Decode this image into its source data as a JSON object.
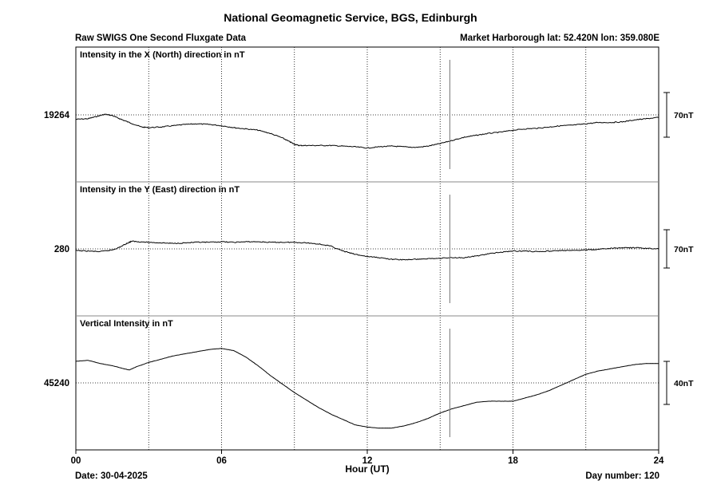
{
  "header": {
    "title": "National Geomagnetic Service, BGS, Edinburgh",
    "subtitle_left": "Raw SWIGS One Second Fluxgate Data",
    "subtitle_right": "Market Harborough  lat: 52.420N lon: 359.080E"
  },
  "footer": {
    "date": "Date: 30-04-2025",
    "day_number": "Day number:  120"
  },
  "chart_data": {
    "type": "line",
    "xlabel": "Hour (UT)",
    "xlim": [
      0,
      24
    ],
    "x_ticks": [
      "00",
      "06",
      "12",
      "18",
      "24"
    ],
    "grid": true,
    "panels": [
      {
        "label": "Intensity in the X (North) direction in nT",
        "ref_value": "19264",
        "scale_bar": "70nT",
        "y_ref": 19264,
        "y_range_per_bar": 70,
        "x": [
          0,
          0.5,
          0.9,
          1.2,
          1.5,
          1.8,
          2.2,
          2.7,
          3.0,
          3.5,
          4.0,
          4.5,
          5.0,
          5.5,
          6.0,
          6.5,
          7.0,
          7.5,
          8.0,
          8.5,
          8.8,
          9.0,
          9.2,
          9.5,
          10.0,
          10.5,
          11.0,
          11.5,
          12.0,
          12.5,
          13.0,
          13.5,
          14.0,
          14.5,
          15.0,
          15.5,
          16.0,
          16.5,
          17.0,
          17.5,
          18.0,
          18.5,
          19.0,
          19.5,
          20.0,
          20.5,
          21.0,
          21.5,
          22.0,
          22.5,
          23.0,
          23.5,
          24.0
        ],
        "values": [
          19257,
          19258,
          19262,
          19265,
          19263,
          19258,
          19252,
          19245,
          19244,
          19245,
          19247,
          19249,
          19250,
          19249,
          19247,
          19244,
          19242,
          19240,
          19235,
          19228,
          19222,
          19218,
          19216,
          19216,
          19216,
          19216,
          19215,
          19214,
          19212,
          19214,
          19215,
          19214,
          19213,
          19215,
          19219,
          19224,
          19229,
          19232,
          19235,
          19237,
          19240,
          19242,
          19243,
          19245,
          19247,
          19248,
          19250,
          19252,
          19252,
          19253,
          19256,
          19258,
          19260
        ]
      },
      {
        "label": "Intensity in the Y (East) direction in nT",
        "ref_value": "280",
        "scale_bar": "70nT",
        "y_ref": 280,
        "y_range_per_bar": 70,
        "x": [
          0,
          0.5,
          1.0,
          1.5,
          1.8,
          2.1,
          2.3,
          2.6,
          3.0,
          3.5,
          4.0,
          4.5,
          5.0,
          5.5,
          6.0,
          6.5,
          7.0,
          7.5,
          8.0,
          8.5,
          9.0,
          9.5,
          10.0,
          10.5,
          11.0,
          11.5,
          12.0,
          12.5,
          13.0,
          13.5,
          14.0,
          14.5,
          15.0,
          15.5,
          16.0,
          16.5,
          17.0,
          17.5,
          18.0,
          18.5,
          19.0,
          19.5,
          20.0,
          20.5,
          21.0,
          21.5,
          22.0,
          22.5,
          23.0,
          23.5,
          24.0
        ],
        "values": [
          277,
          276,
          275,
          278,
          283,
          290,
          294,
          293,
          292,
          291,
          290,
          291,
          292,
          292,
          293,
          292,
          293,
          293,
          292,
          292,
          292,
          291,
          289,
          285,
          276,
          270,
          266,
          264,
          261,
          260,
          261,
          262,
          263,
          264,
          264,
          267,
          271,
          274,
          276,
          276,
          275,
          276,
          277,
          277,
          278,
          279,
          281,
          282,
          282,
          281,
          280
        ]
      },
      {
        "label": "Vertical Intensity in nT",
        "ref_value": "45240",
        "scale_bar": "40nT",
        "y_ref": 45240,
        "y_range_per_bar": 40,
        "x": [
          0,
          0.5,
          1.0,
          1.5,
          2.0,
          2.2,
          2.5,
          3.0,
          3.5,
          4.0,
          4.5,
          5.0,
          5.5,
          6.0,
          6.5,
          7.0,
          7.5,
          8.0,
          8.5,
          9.0,
          9.5,
          10.0,
          10.5,
          11.0,
          11.5,
          12.0,
          12.5,
          13.0,
          13.5,
          14.0,
          14.5,
          15.0,
          15.5,
          16.0,
          16.5,
          17.0,
          17.5,
          18.0,
          18.5,
          19.0,
          19.5,
          20.0,
          20.5,
          21.0,
          21.5,
          22.0,
          22.5,
          23.0,
          23.5,
          24.0
        ],
        "values": [
          45260,
          45261,
          45258,
          45256,
          45253,
          45252,
          45255,
          45259,
          45262,
          45265,
          45267,
          45269,
          45271,
          45272,
          45270,
          45264,
          45256,
          45247,
          45239,
          45231,
          45224,
          45217,
          45211,
          45206,
          45201,
          45199,
          45198,
          45198,
          45200,
          45203,
          45207,
          45212,
          45216,
          45219,
          45222,
          45223,
          45223,
          45223,
          45226,
          45229,
          45233,
          45238,
          45243,
          45248,
          45251,
          45253,
          45255,
          45257,
          45258,
          45258
        ]
      }
    ],
    "spike_hour": 15.4
  }
}
